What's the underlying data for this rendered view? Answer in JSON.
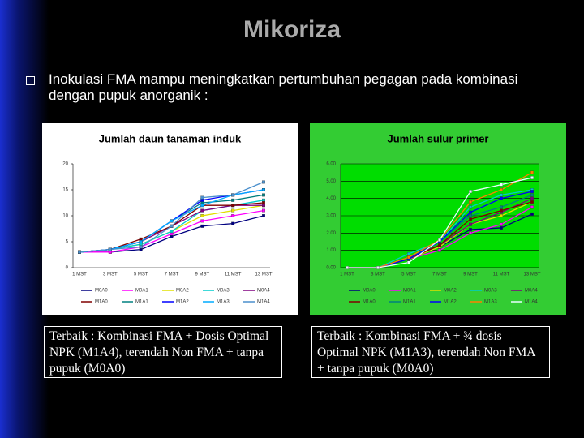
{
  "title": "Mikoriza",
  "bullet": "Inokulasi FMA mampu meningkatkan pertumbuhan pegagan pada kombinasi dengan pupuk anorganik :",
  "notes": [
    "Terbaik : Kombinasi FMA + Dosis Optimal NPK (M1A4), terendah Non FMA + tanpa pupuk (M0A0)",
    "Terbaik : Kombinasi FMA + ¾ dosis Optimal NPK (M1A3), terendah Non FMA + tanpa pupuk (M0A0)"
  ],
  "chart_data": [
    {
      "type": "line",
      "title": "Jumlah daun tanaman induk",
      "grid": false,
      "categories": [
        "1 MST",
        "3 MST",
        "5 MST",
        "7 MST",
        "9 MST",
        "11 MST",
        "13 MST"
      ],
      "ylim": [
        0,
        20
      ],
      "yticks": [
        0,
        5,
        10,
        15,
        20
      ],
      "series": [
        {
          "name": "M0A0",
          "color": "#000080",
          "values": [
            3,
            3,
            3.5,
            6,
            8,
            8.5,
            10
          ]
        },
        {
          "name": "M0A1",
          "color": "#ff00ff",
          "values": [
            3,
            3,
            4,
            6.5,
            9,
            10,
            11
          ]
        },
        {
          "name": "M0A2",
          "color": "#e0e000",
          "values": [
            3,
            3.5,
            4.5,
            7,
            10,
            11,
            12
          ]
        },
        {
          "name": "M0A3",
          "color": "#00cccc",
          "values": [
            3,
            3.5,
            4.5,
            7,
            11,
            12,
            13
          ]
        },
        {
          "name": "M0A4",
          "color": "#800080",
          "values": [
            3,
            3.5,
            5,
            8,
            11,
            12,
            12
          ]
        },
        {
          "name": "M1A0",
          "color": "#800000",
          "values": [
            3,
            3.5,
            5.5,
            8,
            12,
            12,
            12.5
          ]
        },
        {
          "name": "M1A1",
          "color": "#008080",
          "values": [
            3,
            3.5,
            5,
            9,
            12.5,
            13,
            14
          ]
        },
        {
          "name": "M1A2",
          "color": "#0000ff",
          "values": [
            3,
            3.5,
            5,
            9,
            13,
            14,
            15
          ]
        },
        {
          "name": "M1A3",
          "color": "#00aaff",
          "values": [
            3,
            3.5,
            5,
            9,
            12,
            14,
            15
          ]
        },
        {
          "name": "M1A4",
          "color": "#4a8fcc",
          "values": [
            3,
            3.5,
            4,
            8,
            13.5,
            14,
            16.5
          ]
        }
      ]
    },
    {
      "type": "line",
      "title": "Jumlah sulur primer",
      "grid": true,
      "categories": [
        "1 MST",
        "3 MST",
        "5 MST",
        "7 MST",
        "9 MST",
        "11 MST",
        "13 MST"
      ],
      "ylim": [
        0,
        6
      ],
      "yticks": [
        {
          "value": 0,
          "label": "0.00"
        },
        {
          "value": 1,
          "label": "1.00"
        },
        {
          "value": 2,
          "label": "2.00"
        },
        {
          "value": 3,
          "label": "3.00"
        },
        {
          "value": 4,
          "label": "4.00"
        },
        {
          "value": 5,
          "label": "5.00"
        },
        {
          "value": 6,
          "label": "6.00"
        }
      ],
      "series": [
        {
          "name": "M0A0",
          "color": "#000080",
          "values": [
            0,
            0,
            0.5,
            1.2,
            2.2,
            2.3,
            3.1
          ]
        },
        {
          "name": "M0A1",
          "color": "#ff00ff",
          "values": [
            0,
            0,
            0.5,
            1.0,
            2.0,
            2.5,
            3.5
          ]
        },
        {
          "name": "M0A2",
          "color": "#e0e000",
          "values": [
            0,
            0,
            0.5,
            1.2,
            2.5,
            3.0,
            3.8
          ]
        },
        {
          "name": "M0A3",
          "color": "#00cccc",
          "values": [
            0,
            0,
            0.8,
            1.5,
            3.5,
            4.2,
            4.5
          ]
        },
        {
          "name": "M0A4",
          "color": "#800080",
          "values": [
            0,
            0,
            0.6,
            1.3,
            2.5,
            3.2,
            4.0
          ]
        },
        {
          "name": "M1A0",
          "color": "#800000",
          "values": [
            0,
            0,
            0.5,
            1.3,
            2.8,
            3.3,
            3.8
          ]
        },
        {
          "name": "M1A1",
          "color": "#008080",
          "values": [
            0,
            0,
            0.6,
            1.5,
            3.0,
            3.5,
            4.2
          ]
        },
        {
          "name": "M1A2",
          "color": "#0000ff",
          "values": [
            0,
            0,
            0.5,
            1.5,
            3.2,
            4.0,
            4.4
          ]
        },
        {
          "name": "M1A3",
          "color": "#ff8000",
          "values": [
            0,
            0,
            0.6,
            1.6,
            3.8,
            4.5,
            5.5
          ]
        },
        {
          "name": "M1A4",
          "color": "#e8ffff",
          "values": [
            0,
            0,
            0.3,
            1.6,
            4.4,
            4.8,
            5.2
          ]
        }
      ]
    }
  ]
}
